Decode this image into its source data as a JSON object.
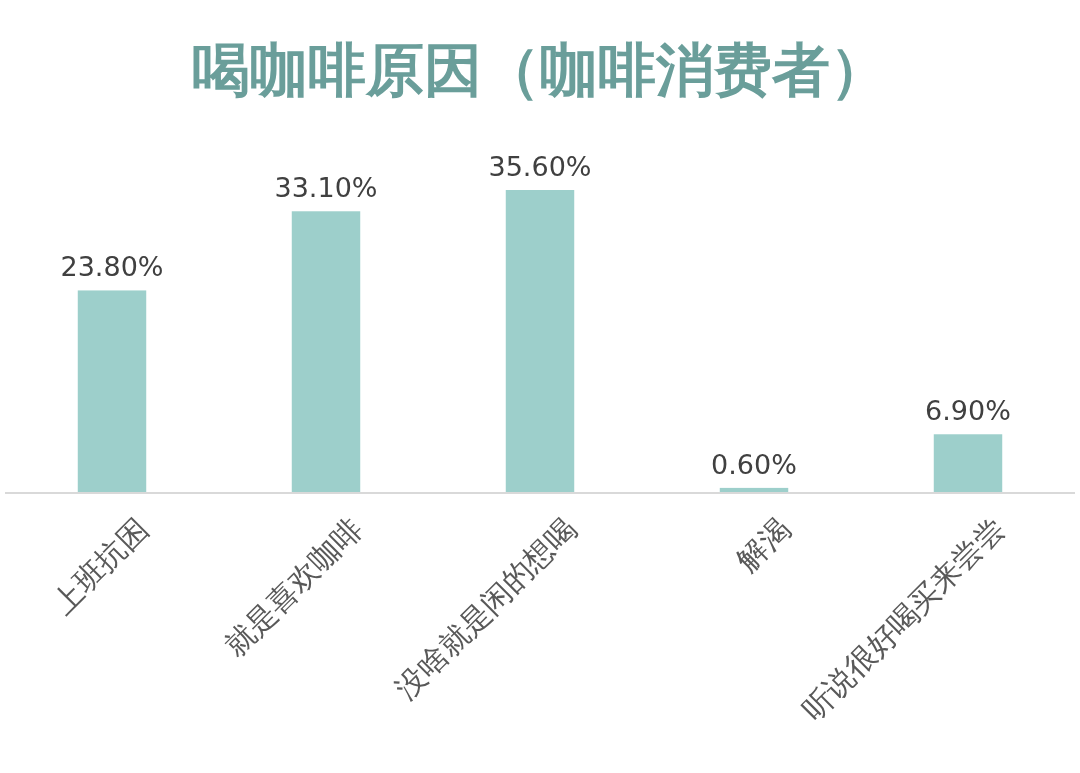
{
  "chart_data": {
    "type": "bar",
    "title": "喝咖啡原因（咖啡消费者）",
    "categories": [
      "上班抗困",
      "就是喜欢咖啡",
      "没啥就是闲的想喝",
      "解渴",
      "听说很好喝买来尝尝"
    ],
    "values": [
      23.8,
      33.1,
      35.6,
      0.6,
      6.9
    ],
    "value_labels": [
      "23.80%",
      "33.10%",
      "35.60%",
      "0.60%",
      "6.90%"
    ],
    "color": "#9dcfcb"
  }
}
